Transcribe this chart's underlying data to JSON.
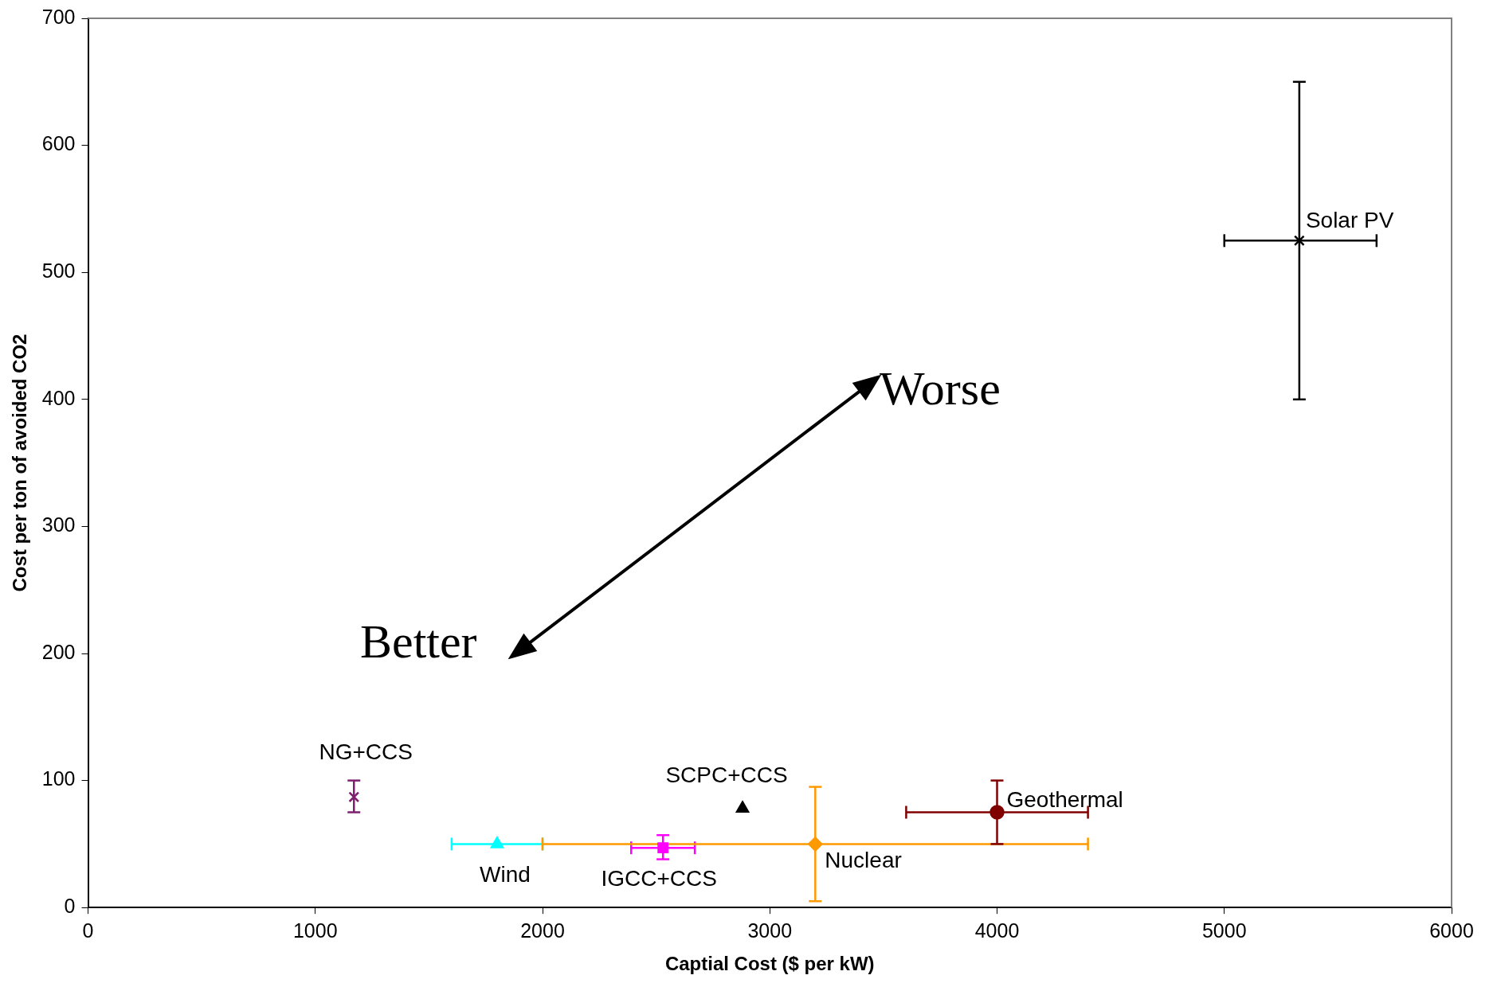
{
  "chart_data": {
    "type": "scatter",
    "xlabel": "Captial Cost ($ per kW)",
    "ylabel": "Cost per ton of avoided CO2",
    "xlim": [
      0,
      6000
    ],
    "xticks": [
      0,
      1000,
      2000,
      3000,
      4000,
      5000,
      6000
    ],
    "ylim": [
      0,
      700
    ],
    "yticks": [
      0,
      100,
      200,
      300,
      400,
      500,
      600,
      700
    ],
    "grid": false,
    "legend": false,
    "series": [
      {
        "name": "NG+CCS",
        "color": "#7f1f6f",
        "marker": "cross",
        "x": [
          1170
        ],
        "values": [
          87
        ],
        "errors": [
          [
            75,
            100
          ]
        ]
      },
      {
        "name": "Wind",
        "color": "#00ffff",
        "marker": "triangle",
        "x": [
          1800
        ],
        "values": [
          50
        ],
        "xerrors": [
          [
            1600,
            2000
          ]
        ]
      },
      {
        "name": "IGCC+CCS",
        "color": "#ff00ff",
        "marker": "square",
        "x": [
          2530
        ],
        "values": [
          47
        ],
        "errors": [
          [
            38,
            57
          ]
        ],
        "xerrors": [
          [
            2390,
            2670
          ]
        ]
      },
      {
        "name": "SCPC+CCS",
        "color": "#000000",
        "marker": "triangle",
        "x": [
          2880
        ],
        "values": [
          78
        ]
      },
      {
        "name": "Nuclear",
        "color": "#ff9900",
        "marker": "diamond",
        "x": [
          3200
        ],
        "values": [
          50
        ],
        "errors": [
          [
            5,
            95
          ]
        ],
        "xerrors": [
          [
            2000,
            4400
          ]
        ]
      },
      {
        "name": "Geothermal",
        "color": "#800000",
        "marker": "circle",
        "x": [
          4000
        ],
        "values": [
          75
        ],
        "errors": [
          [
            50,
            100
          ]
        ],
        "xerrors": [
          [
            3600,
            4400
          ]
        ]
      },
      {
        "name": "Solar PV",
        "color": "#000000",
        "marker": "cross",
        "x": [
          5330
        ],
        "values": [
          525
        ],
        "errors": [
          [
            400,
            650
          ]
        ],
        "xerrors": [
          [
            5000,
            5670
          ]
        ]
      }
    ],
    "annotations": [
      "Better",
      "Worse"
    ]
  }
}
